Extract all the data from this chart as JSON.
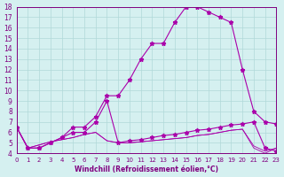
{
  "xlabel": "Windchill (Refroidissement éolien,°C)",
  "ylabel": "",
  "background_color": "#d5f0f0",
  "grid_color": "#b0d8d8",
  "line_color": "#aa00aa",
  "xlim": [
    0,
    23
  ],
  "ylim": [
    4,
    18
  ],
  "xticks": [
    0,
    1,
    2,
    3,
    4,
    5,
    6,
    7,
    8,
    9,
    10,
    11,
    12,
    13,
    14,
    15,
    16,
    17,
    18,
    19,
    20,
    21,
    22,
    23
  ],
  "yticks": [
    4,
    5,
    6,
    7,
    8,
    9,
    10,
    11,
    12,
    13,
    14,
    15,
    16,
    17,
    18
  ],
  "line1_x": [
    0,
    1,
    2,
    3,
    4,
    5,
    6,
    7,
    8,
    9,
    10,
    11,
    12,
    13,
    14,
    15,
    16,
    17,
    18,
    19,
    20,
    21,
    22,
    23
  ],
  "line1_y": [
    6.5,
    4.5,
    4.5,
    5.0,
    5.5,
    6.5,
    6.5,
    7.5,
    9.5,
    9.5,
    11.0,
    13.0,
    14.5,
    14.5,
    16.5,
    18.0,
    18.0,
    17.5,
    17.0,
    16.5,
    12.0,
    8.0,
    7.0,
    6.8
  ],
  "line2_x": [
    0,
    1,
    2,
    3,
    4,
    5,
    6,
    7,
    8,
    9,
    10,
    11,
    12,
    13,
    14,
    15,
    16,
    17,
    18,
    19,
    20,
    21,
    22,
    23
  ],
  "line2_y": [
    6.5,
    4.5,
    4.5,
    5.0,
    5.5,
    6.0,
    6.0,
    7.0,
    9.0,
    5.0,
    5.2,
    5.3,
    5.5,
    5.7,
    5.8,
    6.0,
    6.2,
    6.3,
    6.5,
    6.7,
    6.8,
    7.0,
    4.5,
    4.2
  ],
  "line3_x": [
    0,
    1,
    2,
    3,
    4,
    5,
    6,
    7,
    8,
    9,
    10,
    11,
    12,
    13,
    14,
    15,
    16,
    17,
    18,
    19,
    20,
    21,
    22,
    23
  ],
  "line3_y": [
    6.5,
    4.5,
    4.8,
    5.1,
    5.3,
    5.5,
    5.8,
    6.0,
    5.2,
    5.0,
    5.0,
    5.1,
    5.2,
    5.3,
    5.4,
    5.5,
    5.7,
    5.8,
    6.0,
    6.2,
    6.3,
    4.7,
    4.2,
    4.5
  ],
  "line4_x": [
    0,
    1,
    2,
    3,
    4,
    5,
    6,
    7,
    8,
    9,
    10,
    11,
    12,
    13,
    14,
    15,
    16,
    17,
    18,
    19,
    20,
    21,
    22,
    23
  ],
  "line4_y": [
    6.5,
    4.5,
    4.8,
    5.1,
    5.3,
    5.5,
    5.8,
    6.0,
    5.2,
    5.0,
    5.0,
    5.1,
    5.2,
    5.3,
    5.4,
    5.5,
    5.7,
    5.8,
    6.0,
    6.2,
    6.3,
    4.5,
    4.0,
    4.5
  ]
}
